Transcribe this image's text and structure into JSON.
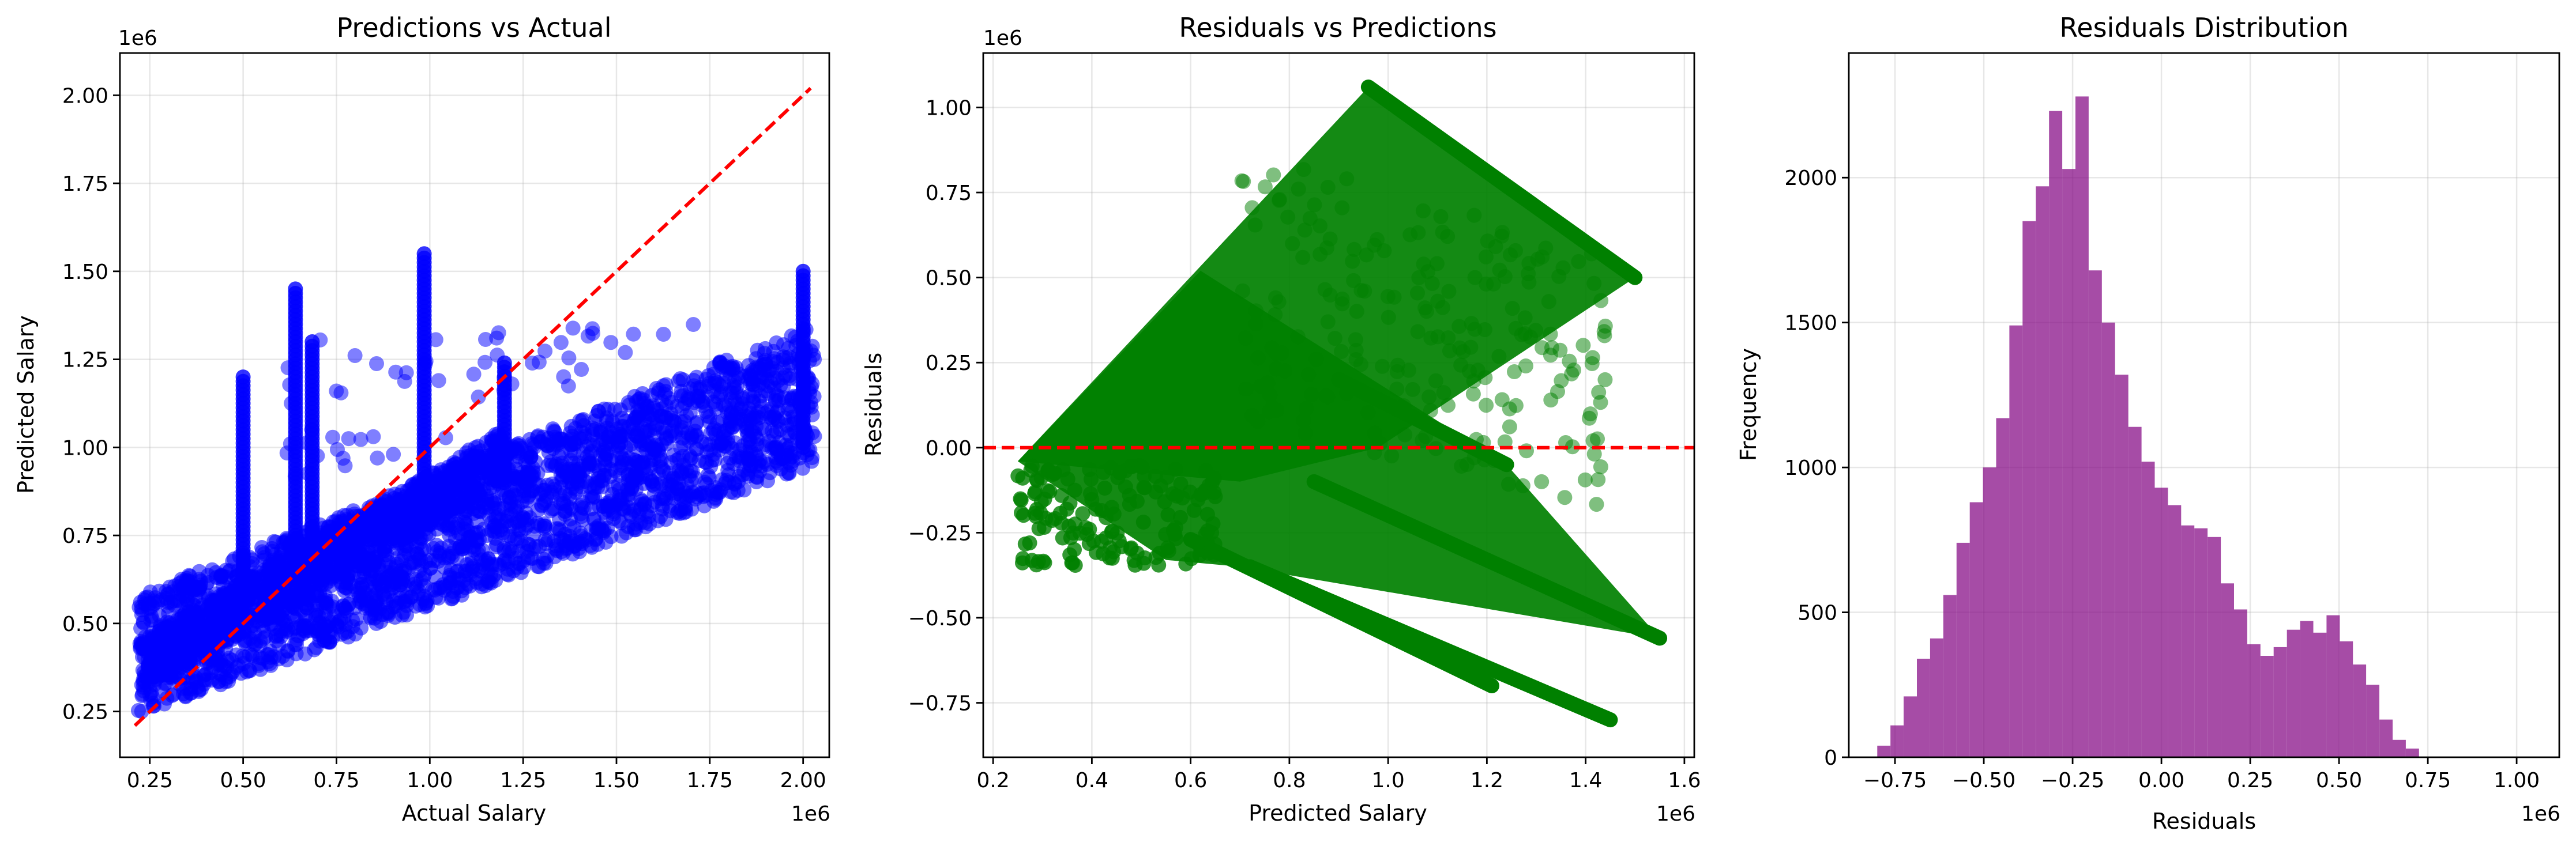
{
  "chart_data": [
    {
      "type": "scatter",
      "title": "Predictions vs Actual",
      "xlabel": "Actual Salary",
      "ylabel": "Predicted Salary",
      "x_offset_label": "1e6",
      "y_offset_label": "1e6",
      "xlim": [
        0.17,
        2.07
      ],
      "ylim": [
        0.12,
        2.12
      ],
      "xticks": [
        0.25,
        0.5,
        0.75,
        1.0,
        1.25,
        1.5,
        1.75,
        2.0
      ],
      "xtick_labels": [
        "0.25",
        "0.50",
        "0.75",
        "1.00",
        "1.25",
        "1.50",
        "1.75",
        "2.00"
      ],
      "yticks": [
        0.25,
        0.5,
        0.75,
        1.0,
        1.25,
        1.5,
        1.75,
        2.0
      ],
      "ytick_labels": [
        "0.25",
        "0.50",
        "0.75",
        "1.00",
        "1.25",
        "1.50",
        "1.75",
        "2.00"
      ],
      "grid": true,
      "point_color": "#0000ff",
      "reference_line": {
        "x": [
          0.21,
          2.02
        ],
        "y": [
          0.21,
          2.02
        ],
        "color": "#ff0000",
        "style": "dashed"
      },
      "bands": [
        {
          "x_start": 0.22,
          "x_end": 2.03,
          "low_start": 0.24,
          "low_end": 0.95,
          "high_start": 0.58,
          "high_end": 1.35
        },
        {
          "x_start": 0.22,
          "x_end": 1.2,
          "low_start": 0.3,
          "low_end": 0.9,
          "high_start": 0.45,
          "high_end": 1.05
        }
      ],
      "spikes": [
        {
          "x": 0.5,
          "y_low": 0.6,
          "y_high": 1.2
        },
        {
          "x": 0.64,
          "y_low": 0.65,
          "y_high": 1.45
        },
        {
          "x": 0.685,
          "y_low": 0.7,
          "y_high": 1.3
        },
        {
          "x": 0.985,
          "y_low": 0.85,
          "y_high": 1.55
        },
        {
          "x": 1.2,
          "y_low": 0.9,
          "y_high": 1.24
        },
        {
          "x": 2.0,
          "y_low": 1.0,
          "y_high": 1.5
        }
      ]
    },
    {
      "type": "scatter",
      "title": "Residuals vs Predictions",
      "xlabel": "Predicted Salary",
      "ylabel": "Residuals",
      "x_offset_label": "1e6",
      "y_offset_label": "1e6",
      "xlim": [
        0.18,
        1.62
      ],
      "ylim": [
        -0.91,
        1.16
      ],
      "xticks": [
        0.2,
        0.4,
        0.6,
        0.8,
        1.0,
        1.2,
        1.4,
        1.6
      ],
      "xtick_labels": [
        "0.2",
        "0.4",
        "0.6",
        "0.8",
        "1.0",
        "1.2",
        "1.4",
        "1.6"
      ],
      "yticks": [
        -0.75,
        -0.5,
        -0.25,
        0.0,
        0.25,
        0.5,
        0.75,
        1.0
      ],
      "ytick_labels": [
        "−0.75",
        "−0.50",
        "−0.25",
        "0.00",
        "0.25",
        "0.50",
        "0.75",
        "1.00"
      ],
      "grid": true,
      "point_color": "#008000",
      "zero_line": {
        "y": 0,
        "color": "#ff0000",
        "style": "dashed"
      },
      "upper_region": [
        [
          0.25,
          -0.04
        ],
        [
          0.96,
          1.06
        ],
        [
          1.5,
          0.5
        ],
        [
          0.98,
          0.0
        ],
        [
          0.7,
          -0.1
        ]
      ],
      "lower_region": [
        [
          0.25,
          -0.04
        ],
        [
          0.62,
          0.52
        ],
        [
          1.24,
          -0.05
        ],
        [
          1.55,
          -0.56
        ],
        [
          0.7,
          -0.35
        ],
        [
          0.55,
          -0.33
        ]
      ],
      "streaks": [
        {
          "x": [
            0.6,
            1.21
          ],
          "y": [
            -0.27,
            -0.7
          ]
        },
        {
          "x": [
            0.72,
            1.45
          ],
          "y": [
            -0.35,
            -0.8
          ]
        },
        {
          "x": [
            0.85,
            1.55
          ],
          "y": [
            -0.1,
            -0.56
          ]
        },
        {
          "x": [
            0.9,
            1.24
          ],
          "y": [
            0.2,
            -0.05
          ]
        },
        {
          "x": [
            0.96,
            1.5
          ],
          "y": [
            1.06,
            0.5
          ]
        }
      ]
    },
    {
      "type": "bar",
      "title": "Residuals Distribution",
      "xlabel": "Residuals",
      "ylabel": "Frequency",
      "x_offset_label": "1e6",
      "xlim": [
        -0.88,
        1.12
      ],
      "ylim": [
        0,
        2430
      ],
      "xticks": [
        -0.75,
        -0.5,
        -0.25,
        0.0,
        0.25,
        0.5,
        0.75,
        1.0
      ],
      "xtick_labels": [
        "−0.75",
        "−0.50",
        "−0.25",
        "0.00",
        "0.25",
        "0.50",
        "0.75",
        "1.00"
      ],
      "yticks": [
        0,
        500,
        1000,
        1500,
        2000
      ],
      "ytick_labels": [
        "0",
        "500",
        "1000",
        "1500",
        "2000"
      ],
      "grid": true,
      "bar_color": "#800080",
      "bin_start": -0.8,
      "bin_width": 0.0372,
      "values": [
        40,
        110,
        210,
        340,
        410,
        560,
        740,
        880,
        1000,
        1170,
        1490,
        1850,
        1970,
        2230,
        2030,
        2280,
        1680,
        1500,
        1320,
        1140,
        1020,
        930,
        870,
        800,
        790,
        760,
        600,
        510,
        390,
        350,
        380,
        440,
        470,
        430,
        490,
        400,
        320,
        250,
        130,
        60,
        30
      ]
    }
  ]
}
